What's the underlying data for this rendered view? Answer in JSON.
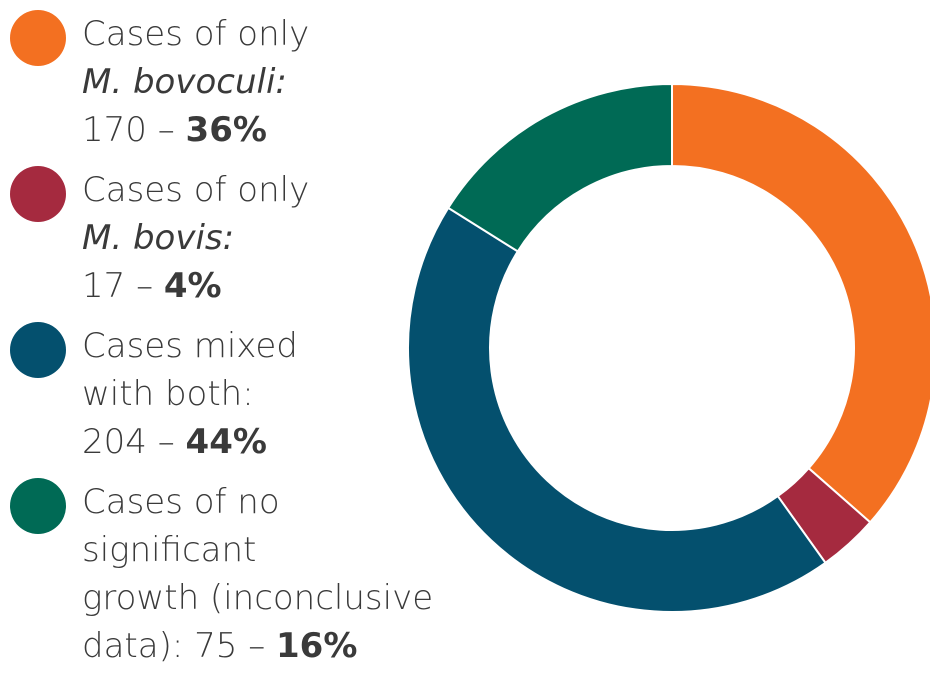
{
  "chart_data": {
    "type": "pie",
    "style": "donut",
    "legend_placement": "left",
    "series": [
      {
        "name": "Cases of only M. bovoculi",
        "value": 170,
        "percent": 36,
        "color": "#F37021",
        "legend": {
          "line1": "Cases of only",
          "line2_italic": "M. bovoculi:",
          "value_text": "170",
          "dash": "–",
          "percent_text": "36%"
        }
      },
      {
        "name": "Cases of only M. bovis",
        "value": 17,
        "percent": 4,
        "color": "#A52A3F",
        "legend": {
          "line1": "Cases of only",
          "line2_italic": "M. bovis:",
          "value_text": "17",
          "dash": "–",
          "percent_text": "4%"
        }
      },
      {
        "name": "Cases mixed with both",
        "value": 204,
        "percent": 44,
        "color": "#04506E",
        "legend": {
          "line1": "Cases mixed",
          "line2": "with both:",
          "value_text": "204",
          "dash": "–",
          "percent_text": "44%"
        }
      },
      {
        "name": "Cases of no significant growth (inconclusive data)",
        "value": 75,
        "percent": 16,
        "color": "#006A55",
        "legend": {
          "line1": "Cases of no",
          "line2": "significant",
          "line3": "growth (inconclusive",
          "line4_prefix": "data): 75",
          "dash": "–",
          "percent_text": "16%"
        }
      }
    ]
  }
}
